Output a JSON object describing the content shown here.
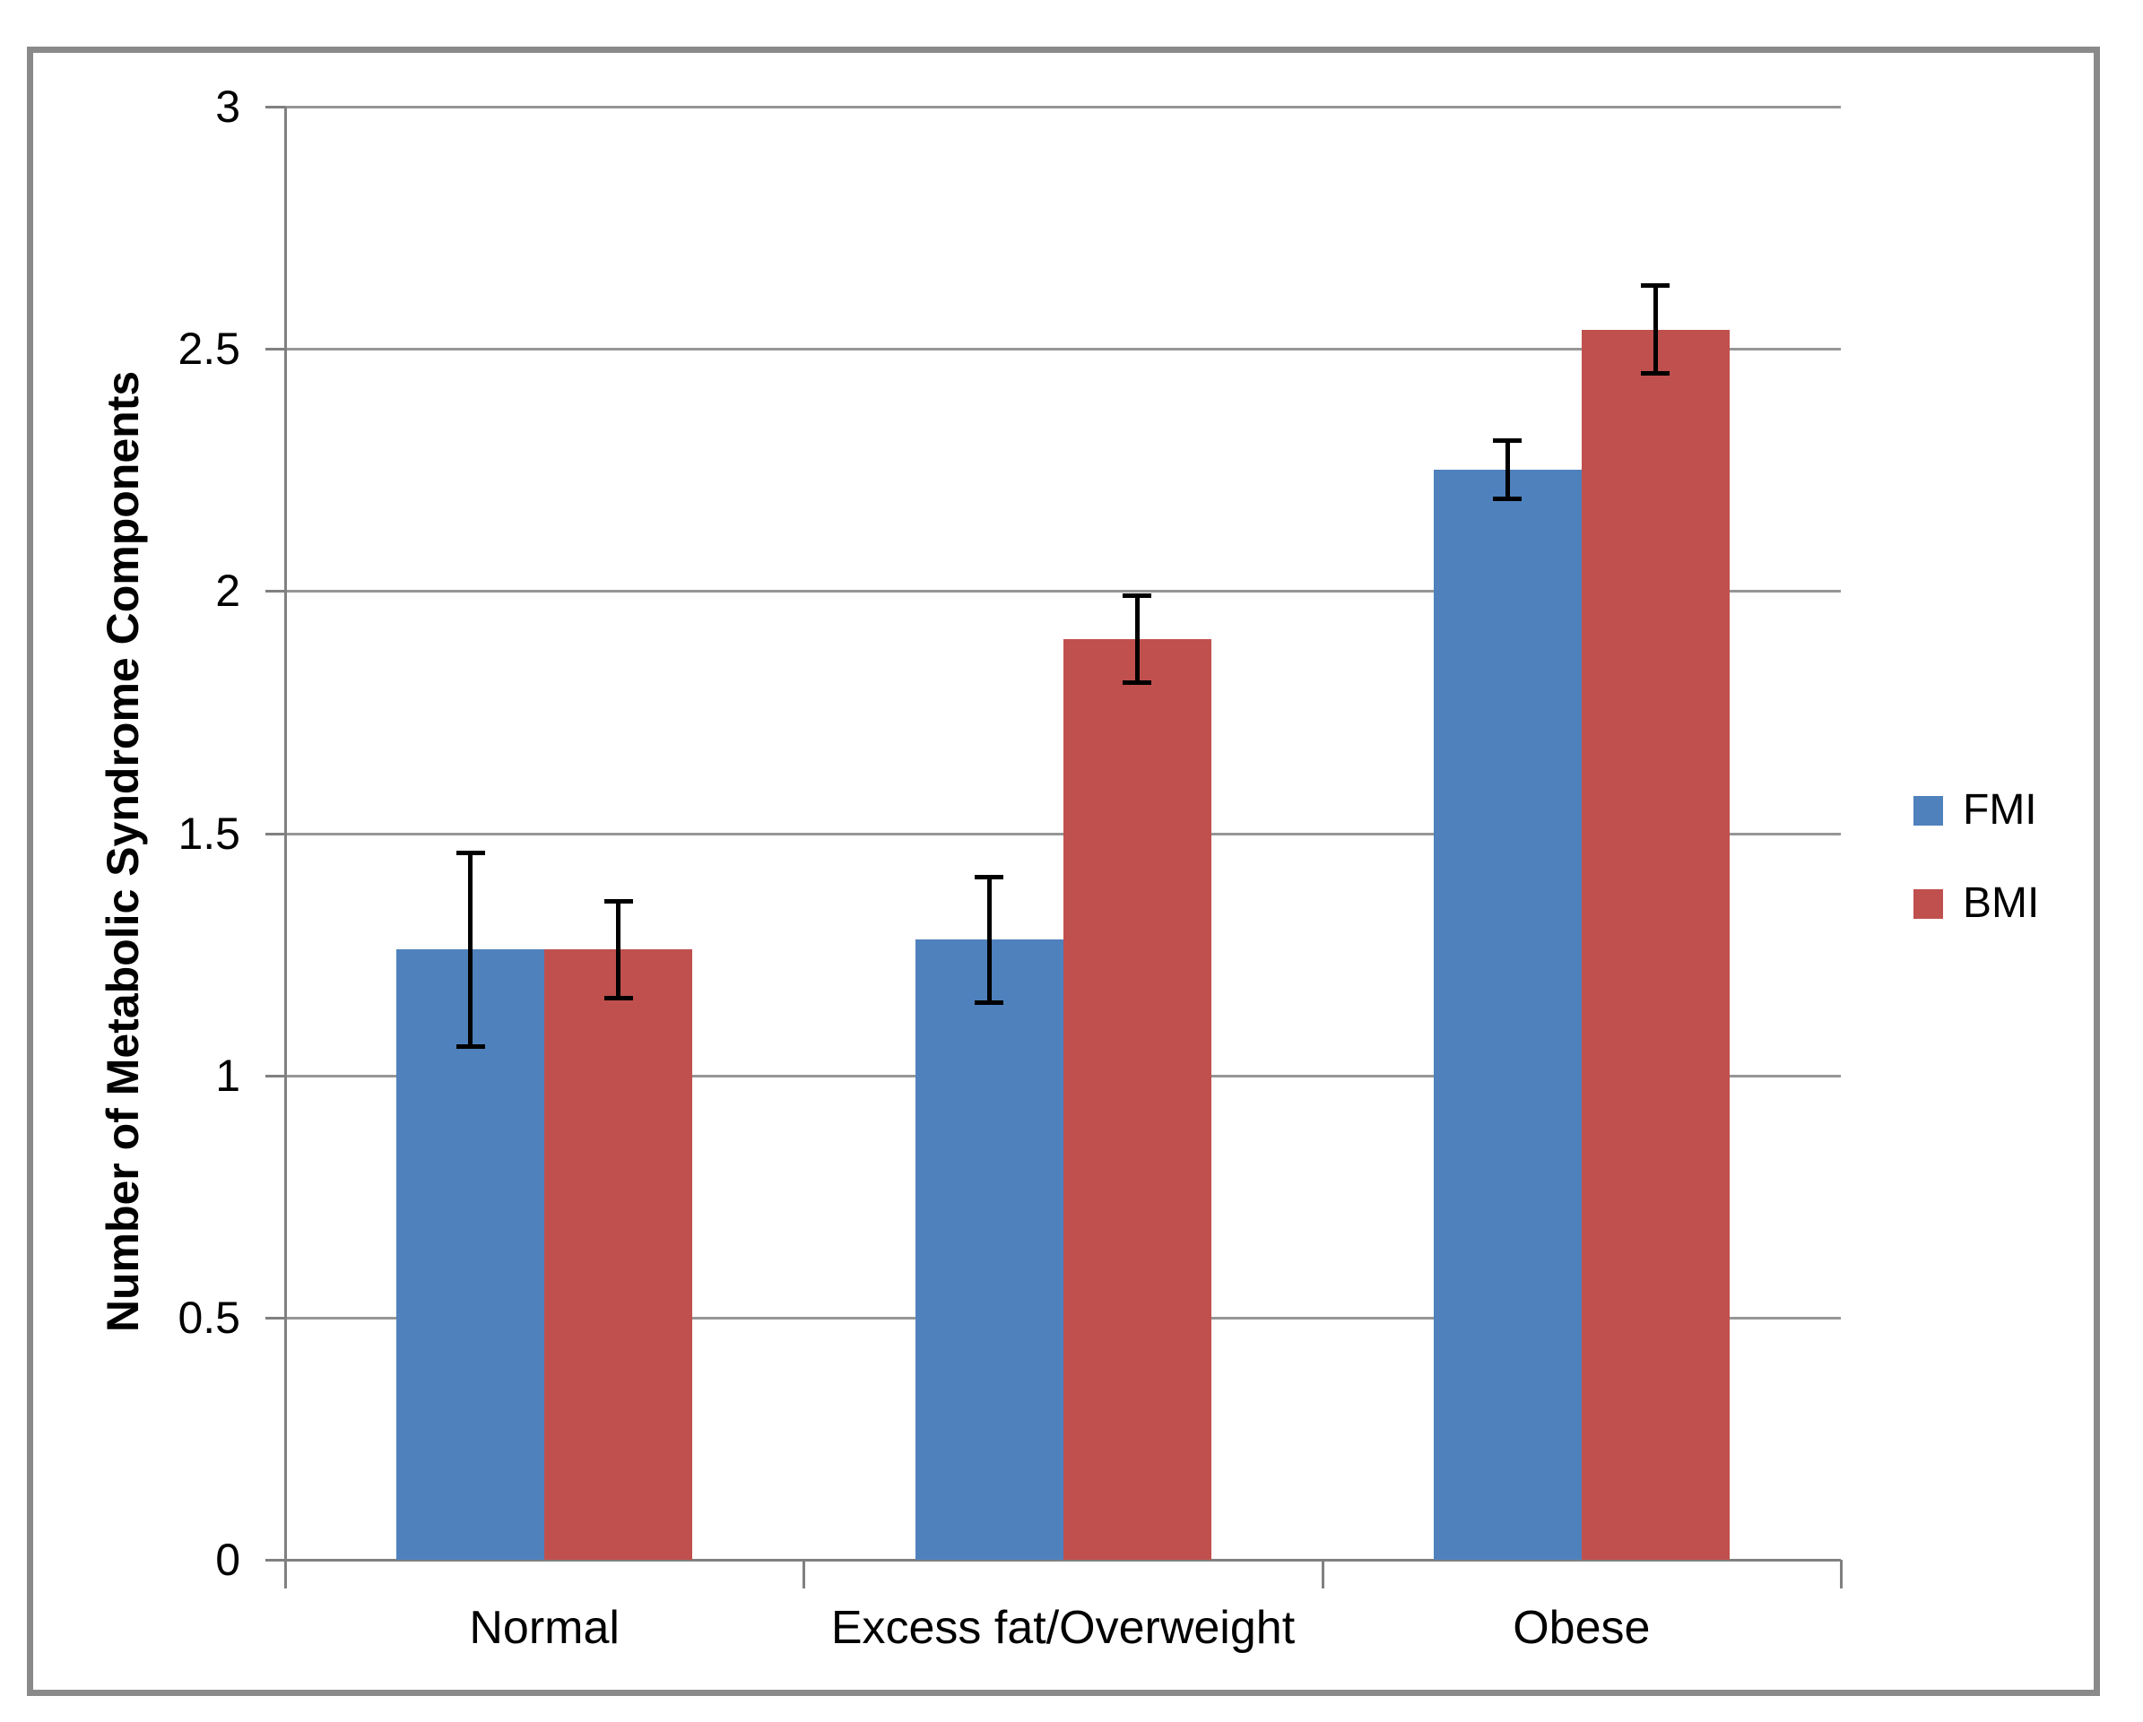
{
  "chart_data": {
    "type": "bar",
    "title": "",
    "categories": [
      "Normal",
      "Excess fat/Overweight",
      "Obese"
    ],
    "series": [
      {
        "name": "FMI",
        "color": "#4F81BD",
        "values": [
          1.26,
          1.28,
          2.25
        ],
        "errors": [
          0.2,
          0.13,
          0.06
        ]
      },
      {
        "name": "BMI",
        "color": "#C0504D",
        "values": [
          1.26,
          1.9,
          2.54
        ],
        "errors": [
          0.1,
          0.09,
          0.09
        ]
      }
    ],
    "xlabel": "",
    "ylabel": "Number of Metabolic Syndrome Components",
    "ylim": [
      0,
      3
    ],
    "ytick_step": 0.5,
    "yticks": [
      "0",
      "0.5",
      "1",
      "1.5",
      "2",
      "2.5",
      "3"
    ],
    "grid": true,
    "legend_position": "right",
    "colors": {
      "gridline": "#969696",
      "axis": "#808080",
      "frame_border": "#8a8a8a",
      "error_bar": "#000000",
      "text": "#000000"
    }
  }
}
